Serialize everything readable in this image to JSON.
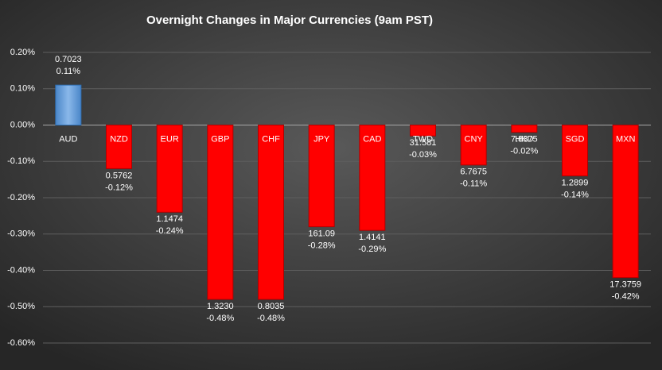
{
  "chart_data": {
    "type": "bar",
    "title": "Overnight Changes in Major Currencies (9am PST)",
    "categories": [
      "AUD",
      "NZD",
      "EUR",
      "GBP",
      "CHF",
      "JPY",
      "CAD",
      "TWD",
      "CNY",
      "HKD",
      "SGD",
      "MXN"
    ],
    "values": [
      0.11,
      -0.12,
      -0.24,
      -0.48,
      -0.48,
      -0.28,
      -0.29,
      -0.03,
      -0.11,
      -0.02,
      -0.14,
      -0.42
    ],
    "value_labels": [
      "0.11%",
      "-0.12%",
      "-0.24%",
      "-0.48%",
      "-0.48%",
      "-0.28%",
      "-0.29%",
      "-0.03%",
      "-0.11%",
      "-0.02%",
      "-0.14%",
      "-0.42%"
    ],
    "rates": [
      "0.7023",
      "0.5762",
      "1.1474",
      "1.3230",
      "0.8035",
      "161.09",
      "1.4141",
      "31.581",
      "6.7675",
      "7.8375",
      "1.2899",
      "17.3759"
    ],
    "color": "#5b9bd5",
    "negative_color": "#ff0000",
    "ylim": [
      -0.6,
      0.2
    ],
    "yticks": [
      {
        "value": -0.6,
        "label": "-0.60%"
      },
      {
        "value": -0.5,
        "label": "-0.50%"
      },
      {
        "value": -0.4,
        "label": "-0.40%"
      },
      {
        "value": -0.3,
        "label": "-0.30%"
      },
      {
        "value": -0.2,
        "label": "-0.20%"
      },
      {
        "value": -0.1,
        "label": "-0.10%"
      },
      {
        "value": 0,
        "label": "0.00%"
      },
      {
        "value": 0.1,
        "label": "0.10%"
      },
      {
        "value": 0.2,
        "label": "0.20%"
      }
    ],
    "grid": true
  }
}
